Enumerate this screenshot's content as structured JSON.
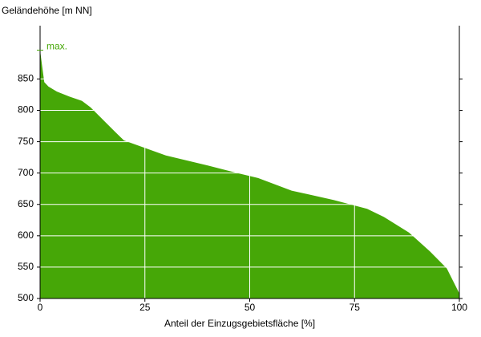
{
  "chart_data": {
    "type": "area",
    "ylabel": "Geländehöhe [m NN]",
    "xlabel": "Anteil der Einzugsgebietsfläche [%]",
    "x": [
      0,
      0.5,
      1,
      2,
      4,
      7,
      10,
      12,
      15,
      18,
      20,
      25,
      30,
      40,
      47,
      52,
      60,
      70,
      78,
      82,
      88,
      93,
      97,
      100
    ],
    "values": [
      896,
      870,
      845,
      838,
      830,
      822,
      815,
      805,
      785,
      765,
      752,
      740,
      728,
      712,
      700,
      692,
      672,
      657,
      643,
      630,
      605,
      575,
      548,
      508
    ],
    "color": "#46a707",
    "annotation": {
      "text": "max.",
      "value": 896,
      "color": "#46a707"
    },
    "xlim": [
      0,
      100
    ],
    "xticks": [
      0,
      25,
      50,
      75,
      100
    ],
    "ylim": [
      500,
      935
    ],
    "yticks": [
      500,
      550,
      600,
      650,
      700,
      750,
      800,
      850
    ],
    "grid": true
  }
}
